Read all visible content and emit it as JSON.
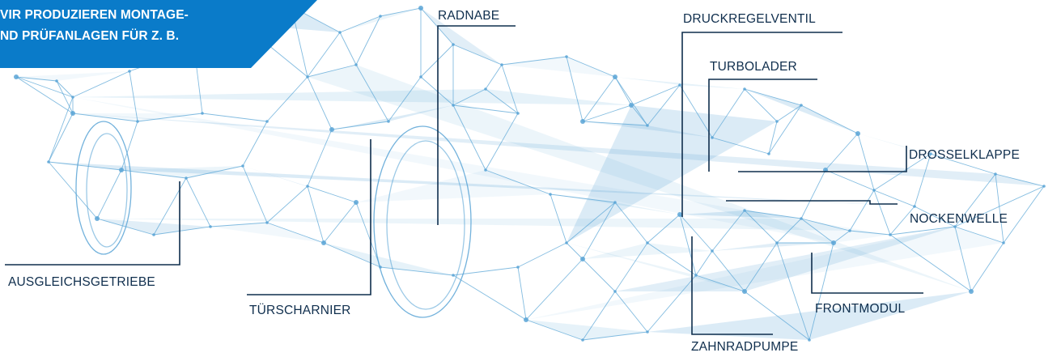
{
  "banner": {
    "line1": "VIR PRODUZIEREN MONTAGE-",
    "line2": "ND PRÜFANLAGEN FÜR Z. B."
  },
  "labels": {
    "radnabe": "RADNABE",
    "druckregelventil": "DRUCKREGELVENTIL",
    "turbolader": "TURBOLADER",
    "drosselklappe": "DROSSELKLAPPE",
    "nockenwelle": "NOCKENWELLE",
    "frontmodul": "FRONTMODUL",
    "zahnradpumpe": "ZAHNRADPUMPE",
    "tuerscharnier": "TÜRSCHARNIER",
    "ausgleichsgetriebe": "AUSGLEICHSGETRIEBE"
  },
  "colors": {
    "banner": "#0a7bc9",
    "leader_line": "#0f2e4d",
    "wireframe": "#5aa5d6"
  }
}
